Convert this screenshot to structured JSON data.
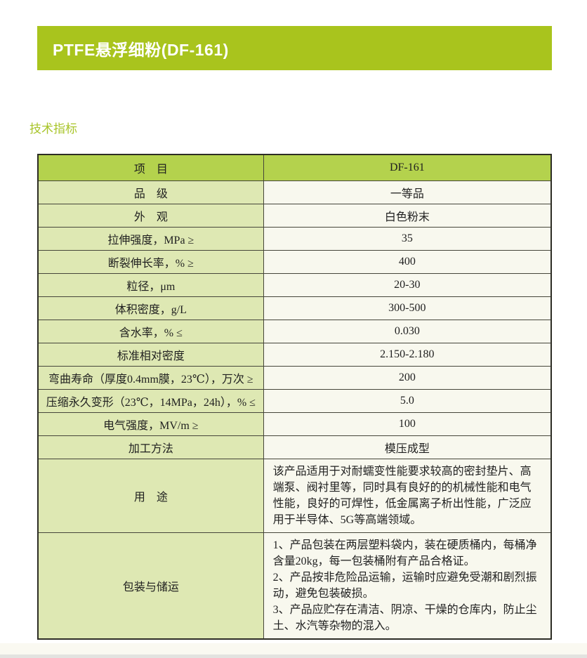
{
  "page": {
    "banner_title": "PTFE悬浮细粉(DF-161)",
    "section_title": "技术指标"
  },
  "colors": {
    "banner_green": "#a9c41d",
    "header_cell_green": "#b4d24d",
    "label_cell_green": "#dee8b3",
    "value_cell_cream": "#f8f8ee",
    "section_title_green": "#a9c52b",
    "table_border": "#45453a",
    "text": "#1f1f1f"
  },
  "table": {
    "header": {
      "item": "项　目",
      "value": "DF-161"
    },
    "rows": [
      {
        "label": "品　级",
        "value": "一等品"
      },
      {
        "label": "外　观",
        "value": "白色粉末"
      },
      {
        "label": "拉伸强度，MPa ≥",
        "value": "35"
      },
      {
        "label": "断裂伸长率，% ≥",
        "value": "400"
      },
      {
        "label": "粒径，μm",
        "value": "20-30"
      },
      {
        "label": "体积密度，g/L",
        "value": "300-500"
      },
      {
        "label": "含水率，% ≤",
        "value": "0.030"
      },
      {
        "label": "标准相对密度",
        "value": "2.150-2.180"
      },
      {
        "label": "弯曲寿命（厚度0.4mm膜，23℃），万次 ≥",
        "value": "200"
      },
      {
        "label": "压缩永久变形（23℃，14MPa，24h），% ≤",
        "value": "5.0"
      },
      {
        "label": "电气强度，MV/m ≥",
        "value": "100"
      },
      {
        "label": "加工方法",
        "value": "模压成型"
      },
      {
        "label": "用　途",
        "value": "该产品适用于对耐蠕变性能要求较高的密封垫片、高端泵、阀衬里等，同时具有良好的的机械性能和电气性能，良好的可焊性，低金属离子析出性能，广泛应用于半导体、5G等高端领域。"
      },
      {
        "label": "包装与储运",
        "value": "1、产品包装在两层塑料袋内，装在硬质桶内，每桶净含量20kg，每一包装桶附有产品合格证。\n2、产品按非危险品运输，运输时应避免受潮和剧烈振动，避免包装破损。\n3、产品应贮存在清洁、阴凉、干燥的仓库内，防止尘土、水汽等杂物的混入。"
      }
    ]
  }
}
